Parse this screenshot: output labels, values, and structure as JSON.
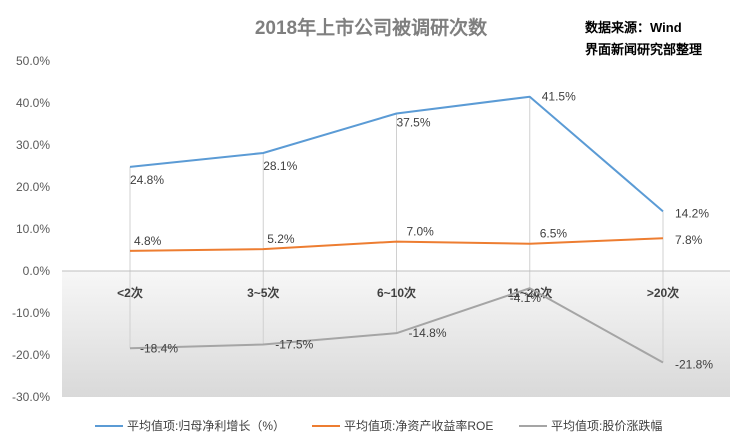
{
  "chart_data": {
    "type": "line",
    "title": "2018年上市公司被调研次数",
    "source_lines": [
      "数据来源：Wind",
      "界面新闻研究部整理"
    ],
    "categories": [
      "<2次",
      "3~5次",
      "6~10次",
      "11~20次",
      ">20次"
    ],
    "yticks": [
      "50.0%",
      "40.0%",
      "30.0%",
      "20.0%",
      "10.0%",
      "0.0%",
      "-10.0%",
      "-20.0%",
      "-30.0%"
    ],
    "ylim": [
      -30,
      50
    ],
    "grid": false,
    "legend_position": "bottom",
    "series": [
      {
        "name": "平均值项:归母净利增长（%）",
        "color": "#5b9bd5",
        "values": [
          24.8,
          28.1,
          37.5,
          41.5,
          14.2
        ],
        "labels": [
          "24.8%",
          "28.1%",
          "37.5%",
          "41.5%",
          "14.2%"
        ]
      },
      {
        "name": "平均值项:净资产收益率ROE",
        "color": "#ed7d31",
        "values": [
          4.8,
          5.2,
          7.0,
          6.5,
          7.8
        ],
        "labels": [
          "4.8%",
          "5.2%",
          "7.0%",
          "6.5%",
          "7.8%"
        ]
      },
      {
        "name": "平均值项:股价涨跌幅",
        "color": "#a5a5a5",
        "values": [
          -18.4,
          -17.5,
          -14.8,
          -4.1,
          -21.8
        ],
        "labels": [
          "-18.4%",
          "-17.5%",
          "-14.8%",
          "-4.1%",
          "-21.8%"
        ]
      }
    ]
  }
}
